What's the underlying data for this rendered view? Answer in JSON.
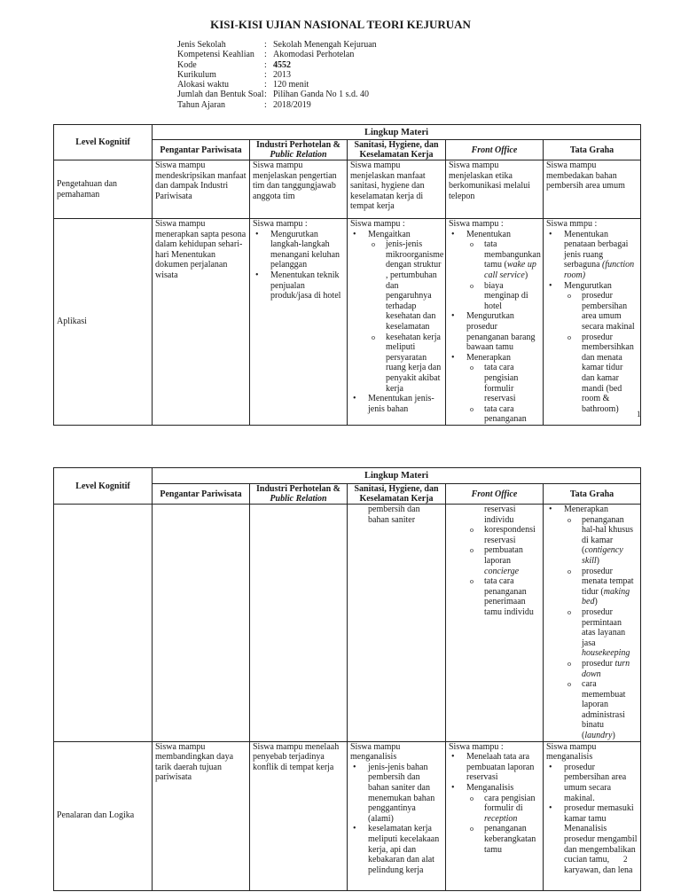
{
  "title": "KISI-KISI UJIAN NASIONAL TEORI KEJURUAN",
  "info": [
    {
      "label": "Jenis Sekolah",
      "value": "Sekolah Menengah Kejuruan",
      "bold": false
    },
    {
      "label": "Kompetensi Keahlian",
      "value": "Akomodasi Perhotelan",
      "bold": false
    },
    {
      "label": "Kode",
      "value": "4552",
      "bold": true
    },
    {
      "label": "Kurikulum",
      "value": "2013",
      "bold": false
    },
    {
      "label": "Alokasi waktu",
      "value": "120 menit",
      "bold": false
    },
    {
      "label": "Jumlah dan Bentuk Soal",
      "value": "Pilihan Ganda No 1 s.d. 40",
      "bold": false
    },
    {
      "label": "Tahun Ajaran",
      "value": "2018/2019",
      "bold": false
    }
  ],
  "colon": ":",
  "table_header": {
    "level": "Level Kognitif",
    "lingkup": "Lingkup Materi",
    "columns": [
      {
        "text": "Pengantar Pariwisata"
      },
      {
        "text": "Industri Perhotelan &",
        "italic": "Public Relation"
      },
      {
        "text": "Sanitasi, Hygiene, dan",
        "line2": "Keselamatan Kerja"
      },
      {
        "italic": "Front Office"
      },
      {
        "text": "Tata Graha"
      }
    ]
  },
  "pages": [
    {
      "page_number": "1",
      "rows": [
        {
          "level": "Pengetahuan dan pemahaman",
          "cells": [
            [
              {
                "t": "p",
                "s": [
                  "Siswa mampu mendeskripsikan manfaat dan dampak Industri  Pariwisata"
                ]
              }
            ],
            [
              {
                "t": "p",
                "s": [
                  "Siswa mampu menjelaskan pengertian tim dan tanggungjawab anggota tim"
                ]
              }
            ],
            [
              {
                "t": "p",
                "s": [
                  "Siswa mampu menjelaskan manfaat sanitasi, hygiene  dan keselamatan kerja di tempat kerja"
                ]
              }
            ],
            [
              {
                "t": "p",
                "s": [
                  "Siswa mampu menjelaskan etika berkomunikasi melalui telepon"
                ]
              }
            ],
            [
              {
                "t": "p",
                "s": [
                  "Siswa mampu membedakan bahan pembersih area umum"
                ]
              }
            ]
          ]
        },
        {
          "level": "Aplikasi",
          "cells": [
            [
              {
                "t": "p",
                "s": [
                  "Siswa mampu menerapkan sapta pesona dalam kehidupan sehari-hari Menentukan dokumen perjalanan wisata"
                ]
              }
            ],
            [
              {
                "t": "p",
                "s": [
                  "Siswa mampu :"
                ]
              },
              {
                "t": "b",
                "s": [
                  "Mengurutkan langkah-langkah menangani keluhan pelanggan"
                ]
              },
              {
                "t": "b",
                "s": [
                  "Menentukan teknik penjualan produk/jasa di hotel"
                ]
              }
            ],
            [
              {
                "t": "p",
                "s": [
                  "Siswa mampu :"
                ]
              },
              {
                "t": "b",
                "s": [
                  "Mengaitkan"
                ]
              },
              {
                "t": "o",
                "s": [
                  "jenis-jenis mikroorganisme dengan struktur , pertumbuhan dan pengaruhnya terhadap kesehatan dan keselamatan"
                ]
              },
              {
                "t": "o",
                "s": [
                  "kesehatan kerja meliputi persyaratan ruang kerja dan penyakit akibat kerja"
                ]
              },
              {
                "t": "b",
                "s": [
                  "Menentukan jenis-jenis bahan"
                ]
              }
            ],
            [
              {
                "t": "p",
                "s": [
                  "Siswa mampu :"
                ]
              },
              {
                "t": "b",
                "s": [
                  "Menentukan"
                ]
              },
              {
                "t": "o",
                "s": [
                  "tata membangunkan tamu (",
                  {
                    "i": "wake up call service"
                  },
                  ")"
                ]
              },
              {
                "t": "o",
                "s": [
                  "biaya menginap di hotel"
                ]
              },
              {
                "t": "b",
                "s": [
                  "Mengurutkan prosedur penanganan barang bawaan tamu"
                ]
              },
              {
                "t": "b",
                "s": [
                  "Menerapkan"
                ]
              },
              {
                "t": "o",
                "s": [
                  "tata cara pengisian formulir reservasi"
                ]
              },
              {
                "t": "o",
                "s": [
                  "tata cara penanganan"
                ]
              }
            ],
            [
              {
                "t": "p",
                "s": [
                  "Siswa mmpu :"
                ]
              },
              {
                "t": "b",
                "s": [
                  "Menentukan penataan berbagai jenis  ruang serbaguna ",
                  {
                    "i": "(function room)"
                  }
                ]
              },
              {
                "t": "b",
                "s": [
                  "Mengurutkan"
                ]
              },
              {
                "t": "o",
                "s": [
                  "prosedur pembersihan area umum secara makinal"
                ]
              },
              {
                "t": "o",
                "s": [
                  "prosedur membersihkan dan menata kamar tidur dan kamar mandi (bed room & bathroom)"
                ]
              }
            ]
          ]
        }
      ]
    },
    {
      "page_number": "2",
      "rows": [
        {
          "level": "",
          "cells": [
            [],
            [],
            [
              {
                "t": "ind",
                "s": [
                  "pembersih dan bahan saniter"
                ]
              }
            ],
            [
              {
                "t": "c",
                "s": [
                  "reservasi individu"
                ]
              },
              {
                "t": "o",
                "s": [
                  "korespondensi reservasi"
                ]
              },
              {
                "t": "o",
                "s": [
                  "pembuatan laporan ",
                  {
                    "i": "concierge"
                  }
                ]
              },
              {
                "t": "o",
                "s": [
                  "tata cara penanganan penerimaan tamu individu"
                ]
              }
            ],
            [
              {
                "t": "b",
                "s": [
                  "Menerapkan"
                ]
              },
              {
                "t": "o",
                "s": [
                  "penanganan hal-hal khusus di kamar (",
                  {
                    "i": "contigency skill"
                  },
                  ")"
                ]
              },
              {
                "t": "o",
                "s": [
                  "prosedur menata tempat tidur (",
                  {
                    "i": "making bed"
                  },
                  ")"
                ]
              },
              {
                "t": "o",
                "s": [
                  "prosedur permintaan atas layanan jasa ",
                  {
                    "i": "housekeeping"
                  }
                ]
              },
              {
                "t": "o",
                "s": [
                  "prosedur ",
                  {
                    "i": "turn down"
                  }
                ]
              },
              {
                "t": "o",
                "s": [
                  "cara memembuat laporan administrasi binatu (",
                  {
                    "i": "laundry"
                  },
                  ")"
                ]
              }
            ]
          ]
        },
        {
          "level": "Penalaran dan Logika",
          "cells": [
            [
              {
                "t": "p",
                "s": [
                  "Siswa mampu membandingkan daya tarik  daerah  tujuan pariwisata"
                ]
              }
            ],
            [
              {
                "t": "p",
                "s": [
                  "Siswa mampu menelaah penyebab terjadinya konflik di tempat kerja"
                ]
              }
            ],
            [
              {
                "t": "p",
                "s": [
                  "Siswa mampu menganalisis"
                ]
              },
              {
                "t": "b",
                "s": [
                  "jenis-jenis bahan pembersih dan bahan saniter dan menemukan bahan penggantinya (alami)"
                ]
              },
              {
                "t": "b",
                "s": [
                  "keselamatan kerja meliputi kecelakaan kerja, api dan kebakaran dan alat pelindung kerja"
                ]
              }
            ],
            [
              {
                "t": "p",
                "s": [
                  "Siswa mampu  :"
                ]
              },
              {
                "t": "b",
                "s": [
                  "Menelaah tata ara pembuatan laporan reservasi"
                ]
              },
              {
                "t": "b",
                "s": [
                  "Menganalisis"
                ]
              },
              {
                "t": "o",
                "s": [
                  "cara pengisian formulir di ",
                  {
                    "i": "reception"
                  }
                ]
              },
              {
                "t": "o",
                "s": [
                  "penanganan keberangkatan tamu"
                ]
              }
            ],
            [
              {
                "t": "p",
                "s": [
                  "Siswa mampu menganalisis"
                ]
              },
              {
                "t": "b",
                "s": [
                  "prosedur pembersihan area umum secara makinal."
                ]
              },
              {
                "t": "b",
                "s": [
                  "prosedur memasuki kamar tamu Menanalisis prosedur mengambil dan mengembalikan cucian tamu, karyawan, dan lena"
                ]
              }
            ]
          ]
        }
      ]
    }
  ]
}
